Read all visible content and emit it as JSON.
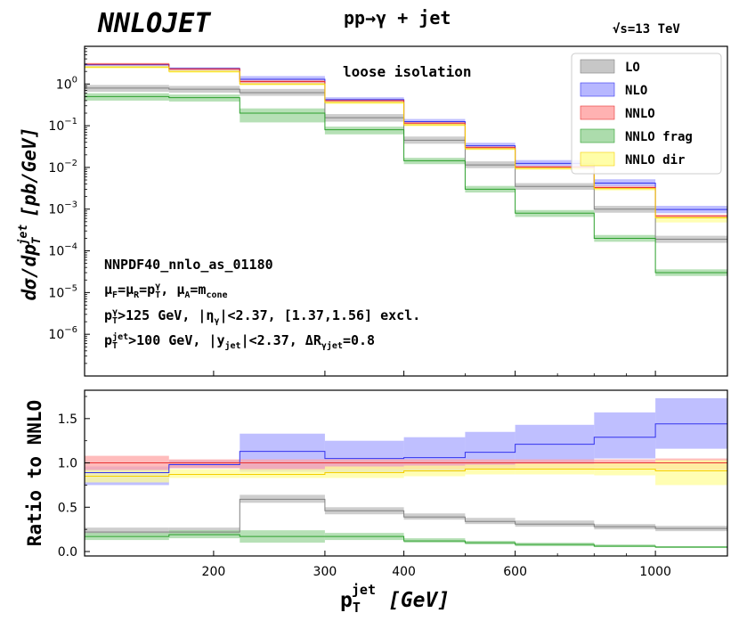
{
  "header": {
    "logo": "NNLOJET",
    "process": "pp→γ + jet",
    "energy_sqrt": "√s",
    "energy_value": "=13 TeV"
  },
  "chart_data": {
    "type": "step-histogram-with-ratio",
    "bin_edges_gev": [
      125,
      170,
      220,
      300,
      400,
      500,
      600,
      800,
      1000,
      1300
    ],
    "x_axis": {
      "label_main": "p",
      "label_sub": "T",
      "label_sup": "jet",
      "label_unit": "[GeV]",
      "scale": "log",
      "xlim": [
        125,
        1300
      ],
      "major_ticks": [
        200,
        300,
        400,
        600,
        1000
      ],
      "tick_labels": [
        "200",
        "300",
        "400",
        "600",
        "1000"
      ],
      "minor_ticks": [
        500,
        700,
        800,
        900
      ]
    },
    "main_panel": {
      "y_label_main": "dσ/dp",
      "y_label_sub": "T",
      "y_label_sup": "jet",
      "y_label_unit": "[pb/GeV]",
      "yscale": "log",
      "ylim": [
        1e-07,
        8
      ],
      "y_ticks": [
        {
          "base": "10",
          "exp": "0",
          "value": 1
        },
        {
          "base": "10",
          "exp": "−1",
          "value": 0.1
        },
        {
          "base": "10",
          "exp": "−2",
          "value": 0.01
        },
        {
          "base": "10",
          "exp": "−3",
          "value": 0.001
        },
        {
          "base": "10",
          "exp": "−4",
          "value": 0.0001
        },
        {
          "base": "10",
          "exp": "−5",
          "value": 1e-05
        },
        {
          "base": "10",
          "exp": "−6",
          "value": 1e-06
        }
      ],
      "annotation": "loose isolation",
      "info_lines": [
        {
          "id": "pdf",
          "text": "NNPDF40_nnlo_as_01180"
        },
        {
          "id": "scales",
          "parts": [
            "μ",
            "F",
            "=μ",
            "R",
            "=p",
            "T",
            "γ",
            ", μ",
            "A",
            "=m",
            "cone"
          ]
        },
        {
          "id": "photon_cuts",
          "parts": [
            "p",
            "T",
            "γ",
            ">125 GeV, |η",
            "γ",
            "|<2.37, [1.37,1.56] excl."
          ]
        },
        {
          "id": "jet_cuts",
          "parts": [
            "p",
            "T",
            "jet",
            ">100 GeV, |y",
            "jet",
            "|<2.37, ΔR",
            "γjet",
            "=0.8"
          ]
        }
      ],
      "series": [
        {
          "name": "LO",
          "color": "#808080",
          "fill": "#bdbdbd",
          "central": [
            0.8,
            0.75,
            0.62,
            0.155,
            0.045,
            0.0115,
            0.0035,
            0.001,
            0.00019,
            2.5e-05
          ],
          "low": [
            0.65,
            0.62,
            0.52,
            0.125,
            0.037,
            0.0096,
            0.0029,
            0.00082,
            0.000155,
            2.1e-05
          ],
          "high": [
            0.95,
            0.9,
            0.76,
            0.19,
            0.055,
            0.014,
            0.0042,
            0.0012,
            0.00023,
            3e-05
          ]
        },
        {
          "name": "NLO",
          "color": "#3333ee",
          "fill": "#aaaaff",
          "central": [
            2.9,
            2.35,
            1.3,
            0.42,
            0.125,
            0.033,
            0.0125,
            0.0042,
            0.00098,
            0.000155
          ],
          "low": [
            2.6,
            2.1,
            1.05,
            0.36,
            0.105,
            0.028,
            0.0105,
            0.0035,
            0.0008,
            0.000125
          ],
          "high": [
            3.1,
            2.5,
            1.55,
            0.48,
            0.145,
            0.039,
            0.015,
            0.0052,
            0.0012,
            0.00019
          ]
        },
        {
          "name": "NNLO",
          "color": "#e83232",
          "fill": "#ffa5a5",
          "central": [
            3.0,
            2.3,
            1.15,
            0.4,
            0.115,
            0.03,
            0.0102,
            0.0033,
            0.00068,
            0.000105
          ],
          "low": [
            2.8,
            2.15,
            1.05,
            0.37,
            0.106,
            0.0277,
            0.0095,
            0.0031,
            0.00062,
            9.5e-05
          ],
          "high": [
            3.2,
            2.45,
            1.25,
            0.43,
            0.124,
            0.0325,
            0.011,
            0.0036,
            0.00074,
            0.000115
          ]
        },
        {
          "name": "NNLO frag",
          "color": "#2ca02c",
          "fill": "#9dd69d",
          "central": [
            0.5,
            0.47,
            0.2,
            0.08,
            0.0145,
            0.003,
            0.0008,
            0.0002,
            3e-05,
            3.4e-06
          ],
          "low": [
            0.4,
            0.38,
            0.12,
            0.062,
            0.012,
            0.0025,
            0.00065,
            0.000165,
            2.5e-05,
            2.8e-06
          ],
          "high": [
            0.6,
            0.56,
            0.26,
            0.095,
            0.017,
            0.0036,
            0.00095,
            0.00024,
            3.6e-05,
            4.1e-06
          ]
        },
        {
          "name": "NNLO dir",
          "color": "#f5d000",
          "fill": "#fffe99",
          "central": [
            2.55,
            2.0,
            1.0,
            0.36,
            0.105,
            0.028,
            0.0095,
            0.0031,
            0.00062,
            0.0001
          ],
          "low": [
            2.35,
            1.85,
            0.92,
            0.33,
            0.097,
            0.026,
            0.0088,
            0.0028,
            0.00048,
            8e-05
          ],
          "high": [
            2.7,
            2.12,
            1.05,
            0.38,
            0.112,
            0.03,
            0.01,
            0.0033,
            0.00068,
            0.000108
          ]
        }
      ]
    },
    "ratio_panel": {
      "y_label": "Ratio to NNLO",
      "ylim": [
        -0.05,
        1.82
      ],
      "y_ticks": [
        0.0,
        0.5,
        1.0,
        1.5
      ],
      "y_tick_labels": [
        "0.0",
        "0.5",
        "1.0",
        "1.5"
      ],
      "series": [
        {
          "name": "LO",
          "color": "#808080",
          "fill": "#bdbdbd",
          "central": [
            0.22,
            0.22,
            0.59,
            0.46,
            0.39,
            0.34,
            0.31,
            0.28,
            0.26,
            0.23
          ],
          "low": [
            0.19,
            0.19,
            0.55,
            0.42,
            0.36,
            0.31,
            0.28,
            0.25,
            0.23,
            0.2
          ],
          "high": [
            0.27,
            0.27,
            0.64,
            0.5,
            0.43,
            0.38,
            0.35,
            0.31,
            0.29,
            0.27
          ]
        },
        {
          "name": "NLO",
          "color": "#3333ee",
          "fill": "#aaaaff",
          "central": [
            0.89,
            0.98,
            1.13,
            1.05,
            1.06,
            1.12,
            1.21,
            1.29,
            1.44,
            1.45
          ],
          "low": [
            0.75,
            0.94,
            0.9,
            0.89,
            0.9,
            0.93,
            1.0,
            1.05,
            1.16,
            1.16
          ],
          "high": [
            0.96,
            1.03,
            1.33,
            1.25,
            1.29,
            1.35,
            1.43,
            1.57,
            1.73,
            1.82
          ]
        },
        {
          "name": "NNLO",
          "color": "#e83232",
          "fill": "#ffa5a5",
          "central": [
            1.0,
            1.0,
            1.0,
            1.0,
            1.0,
            1.0,
            1.0,
            1.0,
            1.0,
            1.0
          ],
          "low": [
            0.92,
            0.94,
            0.92,
            0.93,
            0.93,
            0.93,
            0.93,
            0.94,
            0.92,
            0.92
          ],
          "high": [
            1.08,
            1.04,
            1.04,
            1.04,
            1.04,
            1.04,
            1.04,
            1.04,
            1.05,
            1.05
          ]
        },
        {
          "name": "NNLO frag",
          "color": "#2ca02c",
          "fill": "#9dd69d",
          "central": [
            0.17,
            0.19,
            0.17,
            0.17,
            0.12,
            0.1,
            0.08,
            0.06,
            0.05,
            0.04
          ],
          "low": [
            0.13,
            0.15,
            0.1,
            0.13,
            0.1,
            0.08,
            0.06,
            0.05,
            0.04,
            0.03
          ],
          "high": [
            0.21,
            0.24,
            0.24,
            0.21,
            0.15,
            0.12,
            0.1,
            0.08,
            0.06,
            0.05
          ]
        },
        {
          "name": "NNLO dir",
          "color": "#f5d000",
          "fill": "#fffe99",
          "central": [
            0.85,
            0.87,
            0.87,
            0.89,
            0.91,
            0.93,
            0.93,
            0.93,
            0.91,
            0.93
          ],
          "low": [
            0.78,
            0.83,
            0.83,
            0.83,
            0.85,
            0.87,
            0.87,
            0.86,
            0.75,
            0.7
          ],
          "high": [
            0.92,
            0.93,
            0.93,
            0.96,
            0.97,
            0.98,
            0.99,
            1.0,
            1.03,
            1.02
          ]
        }
      ]
    },
    "legend": {
      "position": "top-right",
      "entries": [
        "LO",
        "NLO",
        "NNLO",
        "NNLO frag",
        "NNLO dir"
      ]
    },
    "overlap_fill": "#ffc04c"
  }
}
